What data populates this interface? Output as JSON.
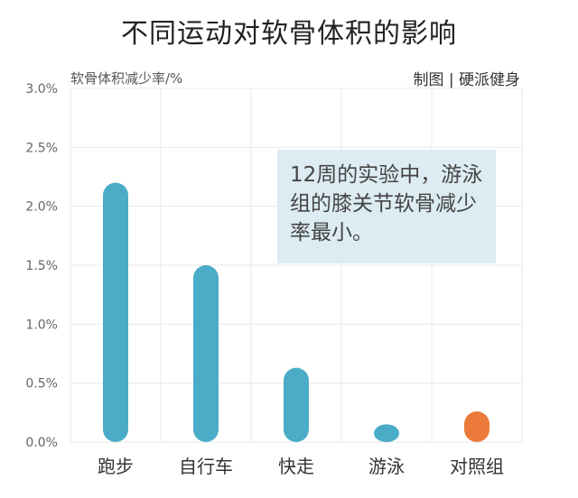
{
  "title": "不同运动对软骨体积的影响",
  "ylabel": "软骨体积减少率/%",
  "credit": "制图 | 硬派健身",
  "annotation": "12周的实验中，游泳组的膝关节软骨减少率最小。",
  "colors": {
    "primary": "#4aacc6",
    "control": "#ec7a3a",
    "grid": "#e8e8e8",
    "axis_text": "#666666"
  },
  "chart_data": {
    "type": "bar",
    "title": "不同运动对软骨体积的影响",
    "ylabel": "软骨体积减少率/%",
    "xlabel": "",
    "categories": [
      "跑步",
      "自行车",
      "快走",
      "游泳",
      "对照组"
    ],
    "values": [
      2.2,
      1.5,
      0.63,
      0.15,
      0.26
    ],
    "ylim": [
      0,
      3
    ],
    "yticks": [
      "0.0%",
      "0.5%",
      "1.0%",
      "1.5%",
      "2.0%",
      "2.5%",
      "3.0%"
    ],
    "grid": true,
    "highlight": {
      "category": "对照组",
      "color": "#ec7a3a"
    }
  }
}
